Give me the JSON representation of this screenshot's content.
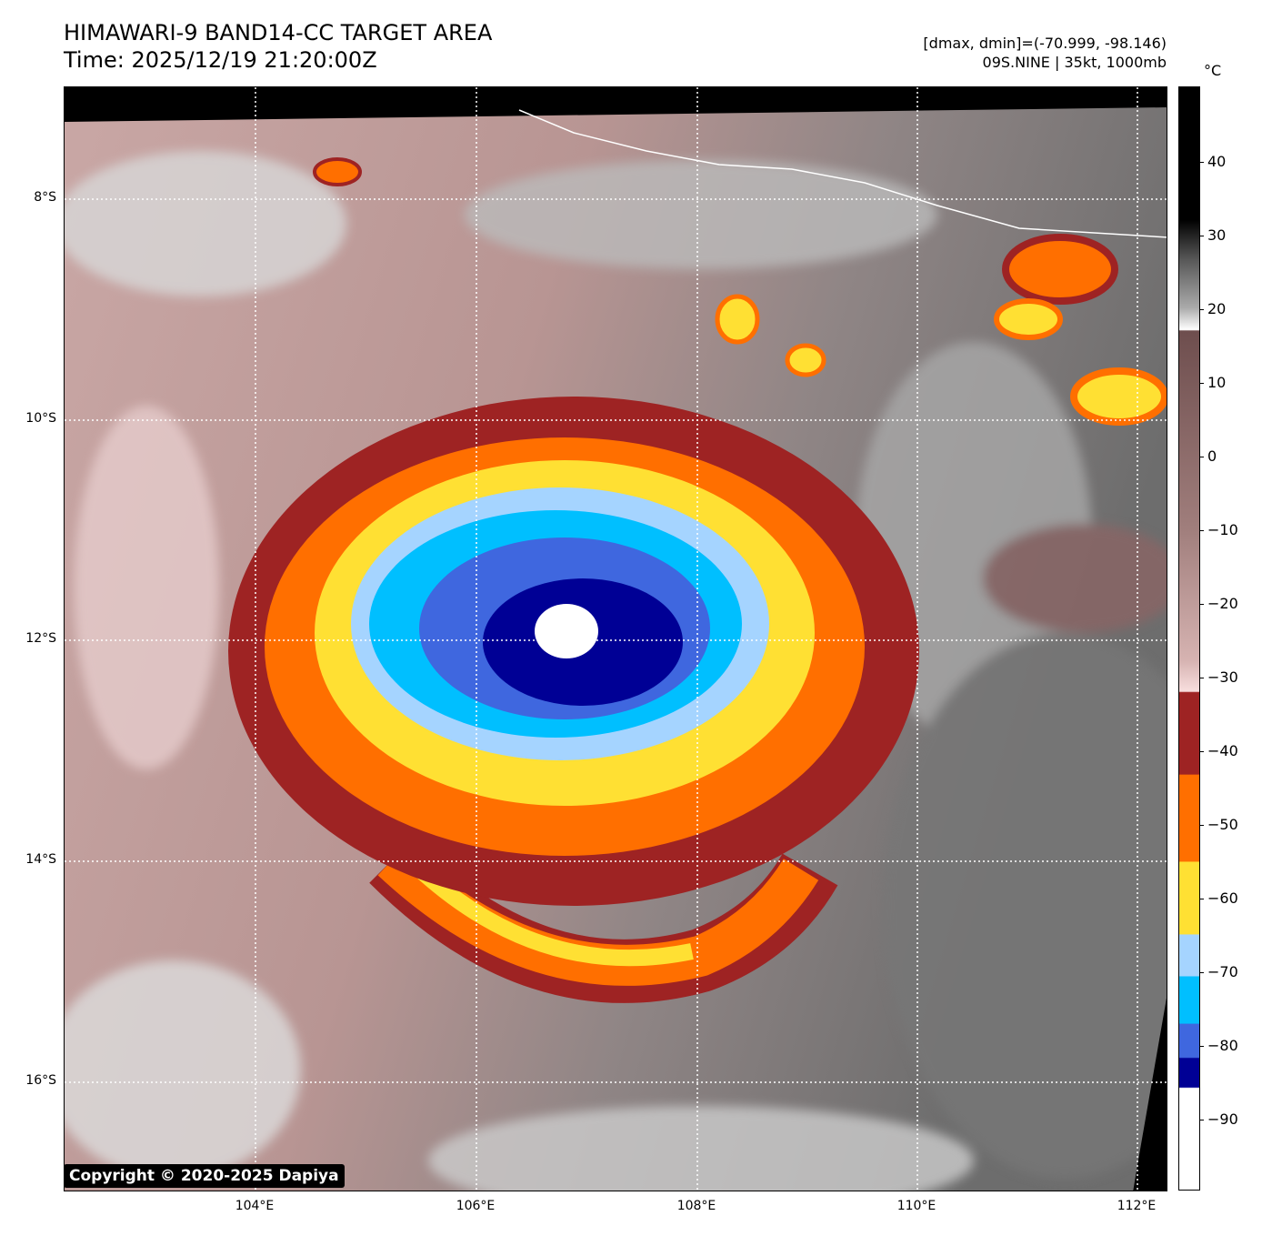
{
  "header": {
    "title": "HIMAWARI-9 BAND14-CC TARGET AREA",
    "time": "Time: 2025/12/19 21:20:00Z",
    "range": "[dmax, dmin]=(-70.999, -98.146)",
    "storm": "09S.NINE | 35kt, 1000mb"
  },
  "map": {
    "lat_labels": [
      "8°S",
      "10°S",
      "12°S",
      "14°S",
      "16°S"
    ],
    "lon_labels": [
      "104°E",
      "106°E",
      "108°E",
      "110°E",
      "112°E"
    ],
    "copyright": "Copyright © 2020-2025 Dapiya"
  },
  "colorbar": {
    "unit": "°C",
    "ticks": [
      "40",
      "30",
      "20",
      "10",
      "0",
      "−10",
      "−20",
      "−30",
      "−40",
      "−50",
      "−60",
      "−70",
      "−80",
      "−90"
    ],
    "range": [
      -100,
      50
    ],
    "colors": {
      "dark_red": "#9e2323",
      "orange": "#ff6f00",
      "yellow": "#ffe033",
      "light_blue": "#a5d4ff",
      "sky": "#00bfff",
      "blue": "#3f67df",
      "navy": "#000095"
    }
  }
}
